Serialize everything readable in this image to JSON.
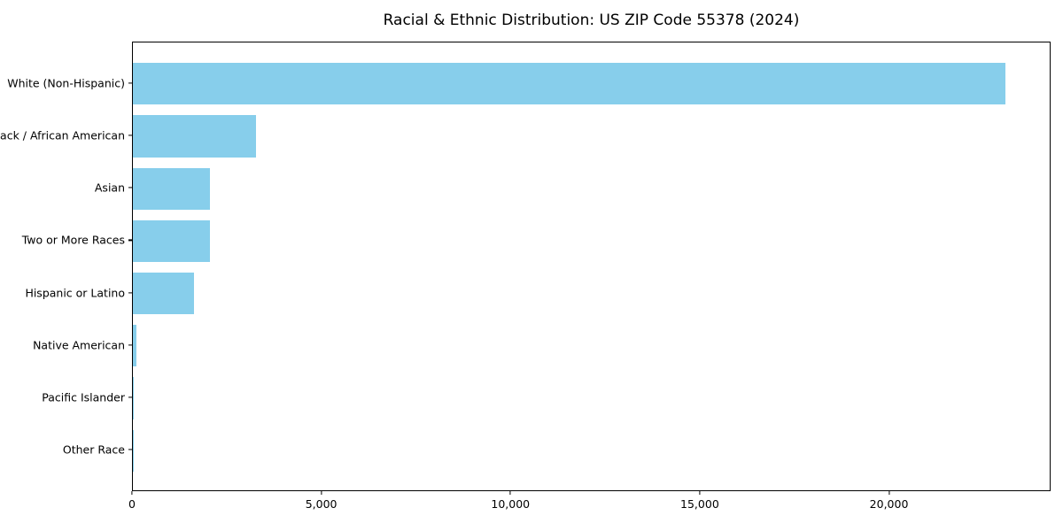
{
  "title": "Racial & Ethnic Distribution: US ZIP Code 55378 (2024)",
  "colors": {
    "bar": "#87CEEB",
    "axis": "#000000",
    "background": "#FFFFFF",
    "text": "#000000"
  },
  "chart_data": {
    "type": "bar",
    "orientation": "horizontal",
    "title": "Racial & Ethnic Distribution: US ZIP Code 55378 (2024)",
    "categories": [
      "White (Non-Hispanic)",
      "Black / African American",
      "Asian",
      "Two or More Races",
      "Hispanic or Latino",
      "Native American",
      "Pacific Islander",
      "Other Race"
    ],
    "values": [
      23100,
      3260,
      2040,
      2030,
      1620,
      100,
      20,
      10
    ],
    "xlabel": "",
    "ylabel": "",
    "xlim": [
      0,
      24270
    ],
    "x_ticks": [
      0,
      5000,
      10000,
      15000,
      20000
    ],
    "x_tick_labels": [
      "0",
      "5,000",
      "10,000",
      "15,000",
      "20,000"
    ],
    "bar_color": "#87CEEB",
    "bar_relative_height": 0.8,
    "grid": false,
    "legend": null
  }
}
